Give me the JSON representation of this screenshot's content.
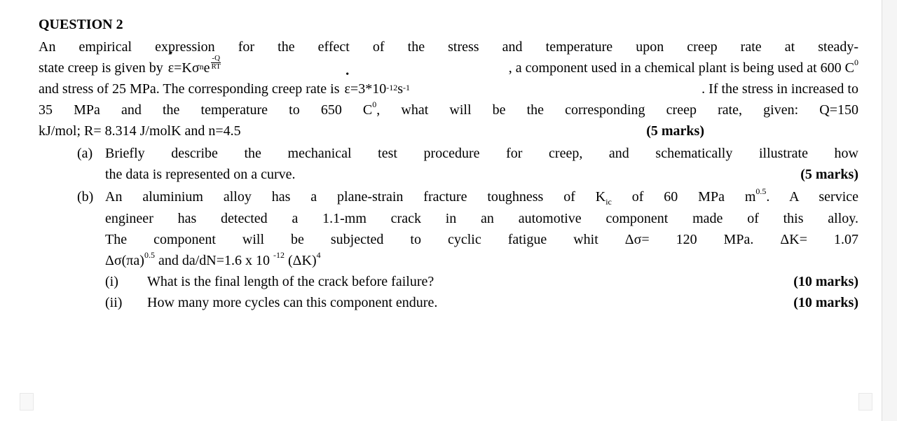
{
  "title": "QUESTION 2",
  "intro": {
    "line1_pre": "An empirical expression for the effect of the stress and temperature upon creep rate at steady-",
    "line2_pre": "state creep is given by ",
    "formula_eps": "ε",
    "formula_eq": "=Kσ",
    "formula_n": "n",
    "formula_e": "e",
    "frac_num": "-Q",
    "frac_den": "RT",
    "line2_post": ", a component used in a chemical plant is being used at 600 C",
    "deg0": "0",
    "line3_pre": "and stress of 25 MPa. The corresponding creep rate is ",
    "formula2_eps": "ε",
    "formula2_eq": "=3*10",
    "exp_neg12": "-12",
    "formula2_s": "s",
    "exp_neg1": "-1",
    "line3_post": ". If the stress in increased to",
    "line4": "35 MPa and the temperature to 650 C",
    "line4_post": ", what will be the corresponding creep rate, given:  Q=150",
    "line5_pre": "kJ/mol; R= 8.314 J/molK and n=4.5",
    "marks_main": "(5 marks)"
  },
  "parts": {
    "a": {
      "label": "(a)",
      "text1": "Briefly describe the mechanical test procedure for creep, and schematically illustrate how",
      "text2": "the data is represented on a curve.",
      "marks": "(5 marks)"
    },
    "b": {
      "label": "(b)",
      "l1_pre": "An aluminium alloy has a plane-strain fracture toughness of K",
      "kic_sub": "ic",
      "l1_mid": " of 60 MPa m",
      "exp05": "0.5",
      "l1_post": ". A service",
      "l2": "engineer has detected a 1.1-mm crack in an automotive component made of this alloy.",
      "l3": "The component will be subjected to cyclic fatigue whit Δσ= 120 MPa. ΔK= 1.07",
      "l4_pre": "Δσ(πa)",
      "l4_mid": " and da/dN=1.6 x 10 ",
      "exp_neg12b": "-12",
      "l4_post": " (ΔK)",
      "exp4": "4",
      "i": {
        "label": "(i)",
        "text": "What is the final length of the crack before failure?",
        "marks": "(10 marks)"
      },
      "ii": {
        "label": "(ii)",
        "text": "How many more cycles can this component endure.",
        "marks": "(10 marks)"
      }
    }
  }
}
